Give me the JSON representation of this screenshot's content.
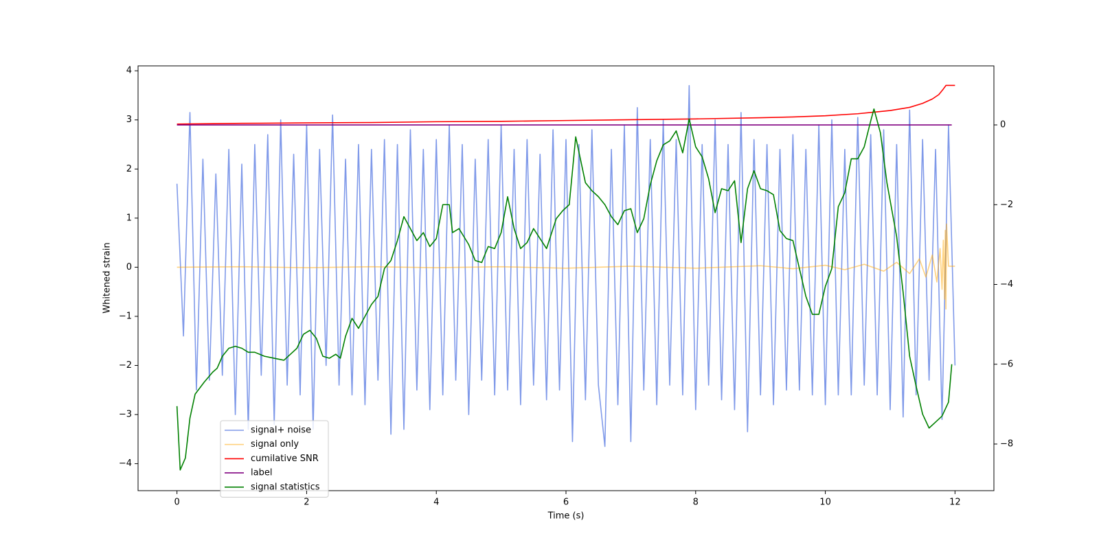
{
  "chart_data": {
    "type": "line",
    "xlabel": "Time (s)",
    "ylabel": "Whitened strain",
    "xlim": [
      -0.6,
      12.6
    ],
    "ylim": [
      -4.55,
      4.1
    ],
    "y2lim": [
      -9.17,
      1.48
    ],
    "xticks": [
      0,
      2,
      4,
      6,
      8,
      10,
      12
    ],
    "yticks": [
      {
        "value": -4,
        "label": "−4"
      },
      {
        "value": -3,
        "label": "−3"
      },
      {
        "value": -2,
        "label": "−2"
      },
      {
        "value": -1,
        "label": "−1"
      },
      0,
      1,
      2,
      3,
      4
    ],
    "y2ticks": [
      {
        "value": -8,
        "label": "−8"
      },
      {
        "value": -6,
        "label": "−6"
      },
      {
        "value": -4,
        "label": "−4"
      },
      {
        "value": -2,
        "label": "−2"
      },
      0
    ],
    "grid": false,
    "legend_loc": "lower left",
    "series": [
      {
        "name": "signal+ noise",
        "color": "#7893e8",
        "x": [
          0,
          0.1,
          0.2,
          0.3,
          0.4,
          0.5,
          0.6,
          0.7,
          0.8,
          0.9,
          1,
          1.1,
          1.2,
          1.3,
          1.4,
          1.5,
          1.6,
          1.7,
          1.8,
          1.9,
          2,
          2.1,
          2.2,
          2.3,
          2.4,
          2.5,
          2.6,
          2.7,
          2.8,
          2.9,
          3,
          3.1,
          3.2,
          3.3,
          3.4,
          3.5,
          3.6,
          3.7,
          3.8,
          3.9,
          4,
          4.1,
          4.2,
          4.3,
          4.4,
          4.5,
          4.6,
          4.7,
          4.8,
          4.9,
          5,
          5.1,
          5.2,
          5.3,
          5.4,
          5.5,
          5.6,
          5.7,
          5.8,
          5.9,
          6,
          6.1,
          6.2,
          6.3,
          6.4,
          6.5,
          6.6,
          6.7,
          6.8,
          6.9,
          7,
          7.1,
          7.2,
          7.3,
          7.4,
          7.5,
          7.6,
          7.7,
          7.8,
          7.9,
          8,
          8.1,
          8.2,
          8.3,
          8.4,
          8.5,
          8.6,
          8.7,
          8.8,
          8.9,
          9,
          9.1,
          9.2,
          9.3,
          9.4,
          9.5,
          9.6,
          9.7,
          9.8,
          9.9,
          10,
          10.1,
          10.2,
          10.3,
          10.4,
          10.5,
          10.6,
          10.7,
          10.8,
          10.9,
          11,
          11.1,
          11.2,
          11.3,
          11.4,
          11.5,
          11.6,
          11.7,
          11.8,
          11.9,
          12
        ],
        "values": [
          1.7,
          -1.4,
          3.15,
          -2.5,
          2.2,
          -2.3,
          1.9,
          -2.2,
          2.4,
          -3.0,
          2.1,
          -3.3,
          2.5,
          -2.2,
          2.7,
          -3.2,
          3.0,
          -2.4,
          2.3,
          -2.6,
          2.9,
          -3.3,
          2.4,
          -2.0,
          3.1,
          -2.4,
          2.2,
          -2.6,
          2.5,
          -2.8,
          2.4,
          -2.3,
          2.6,
          -3.4,
          2.5,
          -3.3,
          2.8,
          -2.5,
          2.4,
          -2.9,
          2.6,
          -2.6,
          2.9,
          -2.3,
          2.5,
          -3.0,
          2.2,
          -2.3,
          2.6,
          -2.6,
          2.9,
          -2.5,
          2.4,
          -2.8,
          2.6,
          -2.4,
          2.3,
          -2.7,
          2.8,
          -2.5,
          2.6,
          -3.55,
          2.5,
          -2.7,
          2.8,
          -2.4,
          -3.65,
          2.4,
          -2.8,
          2.9,
          -3.55,
          3.25,
          -2.5,
          2.6,
          -2.8,
          3.0,
          -2.4,
          2.6,
          -2.6,
          3.7,
          -2.9,
          2.5,
          -2.4,
          3.0,
          -2.7,
          2.5,
          -2.9,
          3.15,
          -3.35,
          2.6,
          -2.6,
          2.5,
          -2.8,
          2.4,
          -2.5,
          2.7,
          -2.5,
          2.4,
          -2.6,
          2.9,
          -2.8,
          3.0,
          -2.6,
          2.4,
          -2.6,
          3.05,
          -2.4,
          2.7,
          -2.6,
          2.8,
          -2.9,
          2.5,
          -3.05,
          3.2,
          -2.6,
          2.6,
          -2.3,
          2.4,
          -3.1,
          2.9,
          -2.0
        ]
      },
      {
        "name": "signal only",
        "color": "#ffa500",
        "x": [
          0,
          1,
          2,
          3,
          4,
          5,
          6,
          7,
          8,
          9,
          9.5,
          10,
          10.3,
          10.6,
          10.9,
          11.1,
          11.3,
          11.45,
          11.55,
          11.65,
          11.72,
          11.77,
          11.8,
          11.82,
          11.84,
          11.85,
          11.86,
          11.87,
          11.9,
          12
        ],
        "values": [
          0,
          0.01,
          -0.01,
          0.01,
          -0.01,
          0.01,
          -0.02,
          0.02,
          -0.02,
          0.03,
          -0.03,
          0.04,
          -0.05,
          0.06,
          -0.08,
          0.1,
          -0.13,
          0.17,
          -0.2,
          0.25,
          -0.3,
          0.38,
          -0.45,
          0.55,
          -0.65,
          0.75,
          -0.85,
          0.88,
          0.02,
          0.02
        ]
      },
      {
        "name": "cumilative SNR",
        "color": "#ff0000",
        "axis": "y2",
        "x": [
          0,
          1,
          2,
          3,
          4,
          5,
          6,
          7,
          8,
          9,
          9.5,
          10,
          10.5,
          11,
          11.3,
          11.5,
          11.65,
          11.75,
          11.82,
          11.86,
          12
        ],
        "values": [
          0.02,
          0.04,
          0.05,
          0.06,
          0.08,
          0.09,
          0.11,
          0.13,
          0.15,
          0.18,
          0.2,
          0.23,
          0.28,
          0.36,
          0.44,
          0.54,
          0.65,
          0.76,
          0.9,
          0.99,
          0.99
        ]
      },
      {
        "name": "label",
        "color": "#800080",
        "axis": "y2",
        "x": [
          0,
          11.95
        ],
        "values": [
          0,
          0
        ]
      },
      {
        "name": "signal statistics",
        "color": "#008000",
        "axis": "y2",
        "x": [
          0,
          0.05,
          0.13,
          0.2,
          0.28,
          0.42,
          0.55,
          0.62,
          0.7,
          0.8,
          0.9,
          1.0,
          1.1,
          1.2,
          1.35,
          1.5,
          1.65,
          1.75,
          1.85,
          1.95,
          2.05,
          2.15,
          2.25,
          2.35,
          2.45,
          2.52,
          2.6,
          2.7,
          2.8,
          2.9,
          3.0,
          3.1,
          3.2,
          3.3,
          3.4,
          3.5,
          3.6,
          3.7,
          3.8,
          3.9,
          4.0,
          4.1,
          4.2,
          4.25,
          4.35,
          4.5,
          4.6,
          4.7,
          4.8,
          4.9,
          5.0,
          5.1,
          5.2,
          5.3,
          5.4,
          5.5,
          5.6,
          5.7,
          5.85,
          5.95,
          6.05,
          6.15,
          6.3,
          6.4,
          6.5,
          6.6,
          6.7,
          6.8,
          6.9,
          7.0,
          7.1,
          7.2,
          7.3,
          7.4,
          7.5,
          7.6,
          7.7,
          7.8,
          7.9,
          8.0,
          8.1,
          8.2,
          8.3,
          8.4,
          8.5,
          8.6,
          8.7,
          8.8,
          8.9,
          9.0,
          9.1,
          9.2,
          9.3,
          9.4,
          9.5,
          9.6,
          9.7,
          9.8,
          9.9,
          10.0,
          10.1,
          10.2,
          10.3,
          10.4,
          10.5,
          10.6,
          10.7,
          10.75,
          10.85,
          10.95,
          11.1,
          11.2,
          11.3,
          11.4,
          11.5,
          11.6,
          11.7,
          11.8,
          11.9,
          11.95
        ],
        "values": [
          -7.05,
          -8.65,
          -8.35,
          -7.35,
          -6.75,
          -6.45,
          -6.2,
          -6.1,
          -5.8,
          -5.6,
          -5.55,
          -5.6,
          -5.7,
          -5.7,
          -5.8,
          -5.85,
          -5.9,
          -5.75,
          -5.6,
          -5.25,
          -5.15,
          -5.35,
          -5.8,
          -5.85,
          -5.75,
          -5.85,
          -5.3,
          -4.85,
          -5.1,
          -4.8,
          -4.5,
          -4.3,
          -3.6,
          -3.4,
          -2.9,
          -2.3,
          -2.6,
          -2.9,
          -2.7,
          -3.05,
          -2.85,
          -2.0,
          -2.0,
          -2.7,
          -2.6,
          -3.0,
          -3.4,
          -3.45,
          -3.05,
          -3.1,
          -2.7,
          -1.8,
          -2.6,
          -3.1,
          -2.95,
          -2.6,
          -2.85,
          -3.1,
          -2.35,
          -2.15,
          -2.0,
          -0.3,
          -1.45,
          -1.65,
          -1.8,
          -2.0,
          -2.3,
          -2.5,
          -2.15,
          -2.1,
          -2.7,
          -2.35,
          -1.5,
          -0.9,
          -0.5,
          -0.4,
          -0.15,
          -0.7,
          0.15,
          -0.55,
          -0.8,
          -1.35,
          -2.2,
          -1.6,
          -1.65,
          -1.4,
          -2.95,
          -1.6,
          -1.15,
          -1.6,
          -1.65,
          -1.75,
          -2.65,
          -2.85,
          -2.9,
          -3.6,
          -4.3,
          -4.75,
          -4.75,
          -4.05,
          -3.6,
          -2.05,
          -1.7,
          -0.85,
          -0.85,
          -0.55,
          0.1,
          0.4,
          -0.2,
          -1.45,
          -2.8,
          -4.2,
          -5.8,
          -6.55,
          -7.25,
          -7.6,
          -7.45,
          -7.3,
          -6.95,
          -6.0
        ]
      }
    ]
  }
}
